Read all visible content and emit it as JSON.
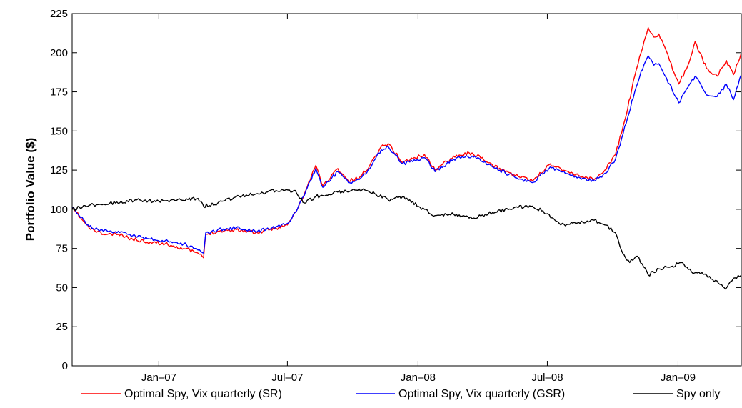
{
  "chart_data": {
    "type": "line",
    "title": "",
    "xlabel": "",
    "ylabel": "Portfolio Value ($)",
    "ylim": [
      0,
      225
    ],
    "yticks": [
      0,
      25,
      50,
      75,
      100,
      125,
      150,
      175,
      200,
      225
    ],
    "xlim": [
      "2006-09-01",
      "2009-03-31"
    ],
    "xticks": [
      {
        "date": "2007-01-01",
        "label": "Jan–07"
      },
      {
        "date": "2007-07-01",
        "label": "Jul–07"
      },
      {
        "date": "2008-01-01",
        "label": "Jan–08"
      },
      {
        "date": "2008-07-01",
        "label": "Jul–08"
      },
      {
        "date": "2009-01-01",
        "label": "Jan–09"
      }
    ],
    "grid": false,
    "legend_position": "bottom",
    "series": [
      {
        "name": "Optimal Spy, Vix quarterly (SR)",
        "color": "#ff0000",
        "x": [
          "2006-09-01",
          "2006-09-25",
          "2006-10-15",
          "2006-11-05",
          "2006-11-25",
          "2006-12-20",
          "2007-01-10",
          "2007-02-05",
          "2007-02-25",
          "2007-03-05",
          "2007-03-08",
          "2007-03-25",
          "2007-04-20",
          "2007-05-20",
          "2007-06-15",
          "2007-07-01",
          "2007-07-15",
          "2007-07-25",
          "2007-08-10",
          "2007-08-20",
          "2007-09-10",
          "2007-09-25",
          "2007-10-10",
          "2007-10-25",
          "2007-11-10",
          "2007-11-20",
          "2007-12-10",
          "2008-01-10",
          "2008-01-25",
          "2008-02-20",
          "2008-03-17",
          "2008-04-15",
          "2008-05-15",
          "2008-06-10",
          "2008-07-05",
          "2008-07-20",
          "2008-08-10",
          "2008-09-05",
          "2008-09-20",
          "2008-10-05",
          "2008-10-20",
          "2008-11-01",
          "2008-11-10",
          "2008-11-20",
          "2008-11-28",
          "2008-12-05",
          "2008-12-20",
          "2009-01-02",
          "2009-01-15",
          "2009-01-25",
          "2009-02-10",
          "2009-02-25",
          "2009-03-10",
          "2009-03-20",
          "2009-03-31"
        ],
        "y": [
          101,
          88,
          84,
          84,
          81,
          79,
          78,
          75,
          72,
          69,
          84,
          86,
          87,
          85,
          88,
          90,
          100,
          110,
          128,
          115,
          126,
          118,
          120,
          128,
          140,
          142,
          130,
          135,
          125,
          134,
          136,
          128,
          122,
          118,
          129,
          126,
          122,
          119,
          125,
          135,
          160,
          185,
          200,
          216,
          210,
          212,
          195,
          180,
          192,
          207,
          190,
          185,
          195,
          186,
          200
        ]
      },
      {
        "name": "Optimal Spy, Vix quarterly (GSR)",
        "color": "#0000ff",
        "x": [
          "2006-09-01",
          "2006-09-25",
          "2006-10-15",
          "2006-11-05",
          "2006-11-25",
          "2006-12-20",
          "2007-01-10",
          "2007-02-05",
          "2007-02-25",
          "2007-03-05",
          "2007-03-08",
          "2007-03-25",
          "2007-04-20",
          "2007-05-20",
          "2007-06-15",
          "2007-07-01",
          "2007-07-15",
          "2007-07-25",
          "2007-08-10",
          "2007-08-20",
          "2007-09-10",
          "2007-09-25",
          "2007-10-10",
          "2007-10-25",
          "2007-11-10",
          "2007-11-20",
          "2007-12-10",
          "2008-01-10",
          "2008-01-25",
          "2008-02-20",
          "2008-03-17",
          "2008-04-15",
          "2008-05-15",
          "2008-06-10",
          "2008-07-05",
          "2008-07-20",
          "2008-08-10",
          "2008-09-05",
          "2008-09-20",
          "2008-10-05",
          "2008-10-20",
          "2008-11-01",
          "2008-11-10",
          "2008-11-20",
          "2008-11-28",
          "2008-12-05",
          "2008-12-20",
          "2009-01-02",
          "2009-01-15",
          "2009-01-25",
          "2009-02-10",
          "2009-02-25",
          "2009-03-10",
          "2009-03-20",
          "2009-03-31"
        ],
        "y": [
          101,
          89,
          86,
          86,
          83,
          81,
          80,
          78,
          74,
          72,
          85,
          87,
          88,
          86,
          89,
          91,
          100,
          109,
          126,
          114,
          124,
          117,
          119,
          126,
          138,
          140,
          129,
          133,
          124,
          132,
          134,
          127,
          121,
          117,
          127,
          124,
          121,
          118,
          123,
          132,
          155,
          175,
          188,
          198,
          192,
          193,
          180,
          168,
          178,
          185,
          173,
          172,
          180,
          170,
          186
        ]
      },
      {
        "name": "Spy only",
        "color": "#000000",
        "x": [
          "2006-09-01",
          "2006-10-01",
          "2006-11-01",
          "2006-12-01",
          "2007-01-01",
          "2007-02-01",
          "2007-02-25",
          "2007-03-05",
          "2007-03-25",
          "2007-04-20",
          "2007-05-20",
          "2007-06-15",
          "2007-07-10",
          "2007-07-25",
          "2007-08-10",
          "2007-09-10",
          "2007-10-10",
          "2007-11-01",
          "2007-11-20",
          "2007-12-10",
          "2008-01-10",
          "2008-01-25",
          "2008-02-20",
          "2008-03-17",
          "2008-04-15",
          "2008-05-15",
          "2008-06-10",
          "2008-06-25",
          "2008-07-10",
          "2008-07-20",
          "2008-08-10",
          "2008-09-05",
          "2008-09-20",
          "2008-10-05",
          "2008-10-15",
          "2008-10-25",
          "2008-11-05",
          "2008-11-20",
          "2008-12-05",
          "2008-12-20",
          "2009-01-05",
          "2009-01-20",
          "2009-02-10",
          "2009-03-01",
          "2009-03-09",
          "2009-03-20",
          "2009-03-31"
        ],
        "y": [
          100,
          103,
          104,
          106,
          105,
          106,
          107,
          102,
          104,
          108,
          110,
          112,
          112,
          104,
          108,
          111,
          113,
          110,
          106,
          108,
          100,
          96,
          97,
          94,
          98,
          101,
          102,
          99,
          94,
          90,
          91,
          93,
          90,
          85,
          72,
          66,
          70,
          58,
          62,
          63,
          66,
          60,
          58,
          52,
          49,
          56,
          58
        ]
      }
    ]
  }
}
